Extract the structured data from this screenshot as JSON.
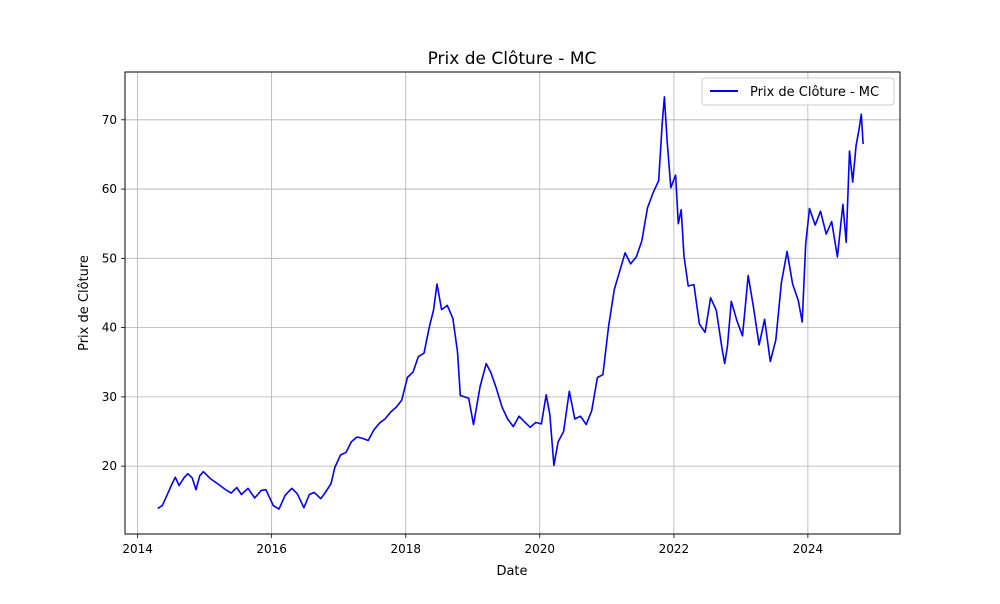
{
  "chart_data": {
    "type": "line",
    "title": "Prix de Clôture - MC",
    "xlabel": "Date",
    "ylabel": "Prix de Clôture",
    "xlim": [
      "2013-10-24",
      "2025-05-17"
    ],
    "ylim": [
      10.2,
      76.9
    ],
    "x_ticks": [
      {
        "label": "2014",
        "value": "2014-01-01"
      },
      {
        "label": "2016",
        "value": "2016-01-01"
      },
      {
        "label": "2018",
        "value": "2018-01-01"
      },
      {
        "label": "2020",
        "value": "2020-01-01"
      },
      {
        "label": "2022",
        "value": "2022-01-01"
      },
      {
        "label": "2024",
        "value": "2024-01-01"
      }
    ],
    "y_ticks": [
      20,
      30,
      40,
      50,
      60,
      70
    ],
    "grid": true,
    "legend_position": "top-right",
    "series": [
      {
        "name": "Prix de Clôture - MC",
        "color": "#0000ff",
        "points": [
          [
            "2014-04-20",
            13.9
          ],
          [
            "2014-05-15",
            14.3
          ],
          [
            "2014-06-10",
            15.8
          ],
          [
            "2014-07-05",
            17.3
          ],
          [
            "2014-07-25",
            18.4
          ],
          [
            "2014-08-15",
            17.2
          ],
          [
            "2014-09-10",
            18.3
          ],
          [
            "2014-10-01",
            18.9
          ],
          [
            "2014-10-25",
            18.3
          ],
          [
            "2014-11-15",
            16.6
          ],
          [
            "2014-12-05",
            18.6
          ],
          [
            "2014-12-25",
            19.2
          ],
          [
            "2015-02-01",
            18.2
          ],
          [
            "2015-03-10",
            17.5
          ],
          [
            "2015-04-20",
            16.7
          ],
          [
            "2015-05-25",
            16.1
          ],
          [
            "2015-06-25",
            16.9
          ],
          [
            "2015-07-20",
            15.9
          ],
          [
            "2015-08-25",
            16.8
          ],
          [
            "2015-10-01",
            15.4
          ],
          [
            "2015-11-05",
            16.5
          ],
          [
            "2015-12-01",
            16.6
          ],
          [
            "2016-01-10",
            14.3
          ],
          [
            "2016-02-10",
            13.8
          ],
          [
            "2016-03-15",
            15.8
          ],
          [
            "2016-04-20",
            16.8
          ],
          [
            "2016-05-20",
            16.0
          ],
          [
            "2016-06-25",
            14.0
          ],
          [
            "2016-07-25",
            15.9
          ],
          [
            "2016-08-20",
            16.2
          ],
          [
            "2016-09-25",
            15.3
          ],
          [
            "2016-10-20",
            16.2
          ],
          [
            "2016-11-20",
            17.5
          ],
          [
            "2016-12-10",
            19.8
          ],
          [
            "2017-01-10",
            21.6
          ],
          [
            "2017-02-10",
            22.0
          ],
          [
            "2017-03-10",
            23.5
          ],
          [
            "2017-04-10",
            24.2
          ],
          [
            "2017-05-10",
            24.0
          ],
          [
            "2017-06-10",
            23.7
          ],
          [
            "2017-07-10",
            25.2
          ],
          [
            "2017-08-10",
            26.2
          ],
          [
            "2017-09-10",
            26.8
          ],
          [
            "2017-10-10",
            27.8
          ],
          [
            "2017-11-10",
            28.5
          ],
          [
            "2017-12-10",
            29.5
          ],
          [
            "2018-01-10",
            32.8
          ],
          [
            "2018-02-10",
            33.6
          ],
          [
            "2018-03-10",
            35.8
          ],
          [
            "2018-04-10",
            36.3
          ],
          [
            "2018-05-10",
            40.2
          ],
          [
            "2018-06-01",
            42.5
          ],
          [
            "2018-06-20",
            46.3
          ],
          [
            "2018-07-15",
            42.6
          ],
          [
            "2018-08-15",
            43.2
          ],
          [
            "2018-09-15",
            41.3
          ],
          [
            "2018-10-10",
            36.5
          ],
          [
            "2018-10-25",
            30.2
          ],
          [
            "2018-12-10",
            29.8
          ],
          [
            "2019-01-05",
            26.0
          ],
          [
            "2019-02-10",
            31.5
          ],
          [
            "2019-03-15",
            34.8
          ],
          [
            "2019-04-10",
            33.5
          ],
          [
            "2019-05-10",
            31.2
          ],
          [
            "2019-06-10",
            28.5
          ],
          [
            "2019-07-10",
            26.8
          ],
          [
            "2019-08-10",
            25.7
          ],
          [
            "2019-09-10",
            27.2
          ],
          [
            "2019-10-10",
            26.4
          ],
          [
            "2019-11-10",
            25.6
          ],
          [
            "2019-12-10",
            26.3
          ],
          [
            "2020-01-10",
            26.1
          ],
          [
            "2020-02-05",
            30.3
          ],
          [
            "2020-02-25",
            27.5
          ],
          [
            "2020-03-18",
            20.1
          ],
          [
            "2020-04-10",
            23.5
          ],
          [
            "2020-05-10",
            25.0
          ],
          [
            "2020-06-10",
            30.8
          ],
          [
            "2020-07-10",
            26.8
          ],
          [
            "2020-08-10",
            27.2
          ],
          [
            "2020-09-10",
            26.0
          ],
          [
            "2020-10-10",
            28.0
          ],
          [
            "2020-11-10",
            32.8
          ],
          [
            "2020-12-10",
            33.2
          ],
          [
            "2021-01-10",
            40.2
          ],
          [
            "2021-02-10",
            45.5
          ],
          [
            "2021-03-10",
            48.0
          ],
          [
            "2021-04-10",
            50.8
          ],
          [
            "2021-05-10",
            49.2
          ],
          [
            "2021-06-10",
            50.2
          ],
          [
            "2021-07-10",
            52.5
          ],
          [
            "2021-08-10",
            57.3
          ],
          [
            "2021-09-10",
            59.5
          ],
          [
            "2021-10-10",
            61.2
          ],
          [
            "2021-10-29",
            69.5
          ],
          [
            "2021-11-10",
            73.3
          ],
          [
            "2021-11-25",
            67.0
          ],
          [
            "2021-12-15",
            60.2
          ],
          [
            "2022-01-10",
            62.0
          ],
          [
            "2022-01-25",
            55.0
          ],
          [
            "2022-02-10",
            57.0
          ],
          [
            "2022-02-25",
            50.3
          ],
          [
            "2022-03-20",
            46.0
          ],
          [
            "2022-04-20",
            46.2
          ],
          [
            "2022-05-20",
            40.5
          ],
          [
            "2022-06-20",
            39.3
          ],
          [
            "2022-07-20",
            44.3
          ],
          [
            "2022-08-20",
            42.5
          ],
          [
            "2022-09-20",
            37.0
          ],
          [
            "2022-10-05",
            34.8
          ],
          [
            "2022-10-20",
            37.4
          ],
          [
            "2022-11-10",
            43.8
          ],
          [
            "2022-12-10",
            41.0
          ],
          [
            "2023-01-10",
            38.8
          ],
          [
            "2023-02-10",
            47.5
          ],
          [
            "2023-03-10",
            43.0
          ],
          [
            "2023-04-10",
            37.5
          ],
          [
            "2023-05-10",
            41.2
          ],
          [
            "2023-06-10",
            35.1
          ],
          [
            "2023-07-10",
            38.2
          ],
          [
            "2023-08-10",
            46.5
          ],
          [
            "2023-09-10",
            51.0
          ],
          [
            "2023-10-10",
            46.3
          ],
          [
            "2023-11-10",
            43.9
          ],
          [
            "2023-12-01",
            40.8
          ],
          [
            "2023-12-20",
            52.1
          ],
          [
            "2024-01-10",
            57.2
          ],
          [
            "2024-02-10",
            54.8
          ],
          [
            "2024-03-10",
            56.8
          ],
          [
            "2024-04-10",
            53.5
          ],
          [
            "2024-05-10",
            55.3
          ],
          [
            "2024-06-10",
            50.2
          ],
          [
            "2024-07-10",
            57.8
          ],
          [
            "2024-07-28",
            52.3
          ],
          [
            "2024-08-15",
            65.5
          ],
          [
            "2024-09-01",
            61.0
          ],
          [
            "2024-09-20",
            66.3
          ],
          [
            "2024-10-05",
            68.5
          ],
          [
            "2024-10-18",
            70.8
          ],
          [
            "2024-10-28",
            66.5
          ]
        ]
      }
    ]
  }
}
